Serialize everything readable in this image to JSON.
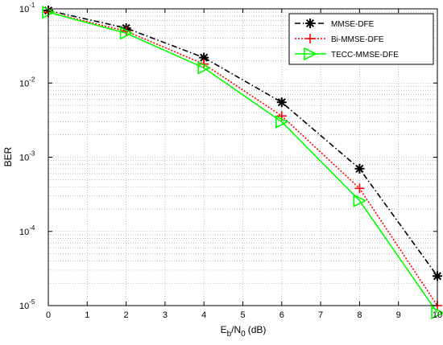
{
  "chart_data": {
    "type": "line",
    "title": "",
    "xlabel": "E_b/N_0 (dB)",
    "xlabel_parts": {
      "E": "E",
      "b": "b",
      "slash_N": "/N",
      "zero": "0",
      "unit": "(dB)"
    },
    "ylabel": "BER",
    "xlim": [
      0,
      10
    ],
    "ylim": [
      1e-05,
      0.1
    ],
    "yscale": "log",
    "grid": true,
    "legend_position": "top-right",
    "x_ticks": [
      0,
      1,
      2,
      3,
      4,
      5,
      6,
      7,
      8,
      9,
      10
    ],
    "x_tick_labels": [
      "0",
      "1",
      "2",
      "3",
      "4",
      "5",
      "6",
      "7",
      "8",
      "9",
      "10"
    ],
    "y_ticks": [
      {
        "value": 0.1,
        "base": "10",
        "exp": "-1"
      },
      {
        "value": 0.01,
        "base": "10",
        "exp": "-2"
      },
      {
        "value": 0.001,
        "base": "10",
        "exp": "-3"
      },
      {
        "value": 0.0001,
        "base": "10",
        "exp": "-4"
      },
      {
        "value": 1e-05,
        "base": "10",
        "exp": "-5"
      }
    ],
    "series": [
      {
        "name": "MMSE-DFE",
        "color": "#000000",
        "line_style": "dashdot",
        "marker": "asterisk",
        "x": [
          0,
          2,
          4,
          6,
          8,
          10
        ],
        "y": [
          0.095,
          0.055,
          0.022,
          0.0055,
          0.0007,
          2.5e-05
        ]
      },
      {
        "name": "Bi-MMSE-DFE",
        "color": "#ff0000",
        "line_style": "dotted",
        "marker": "plus",
        "x": [
          0,
          2,
          4,
          6,
          8,
          10
        ],
        "y": [
          0.09,
          0.05,
          0.018,
          0.0036,
          0.00038,
          1e-05
        ]
      },
      {
        "name": "TECC-MMSE-DFE",
        "color": "#00ff00",
        "line_style": "solid",
        "marker": "triangle-right",
        "x": [
          0,
          2,
          4,
          6,
          8,
          10
        ],
        "y": [
          0.09,
          0.047,
          0.016,
          0.003,
          0.00026,
          8e-06
        ]
      }
    ]
  }
}
